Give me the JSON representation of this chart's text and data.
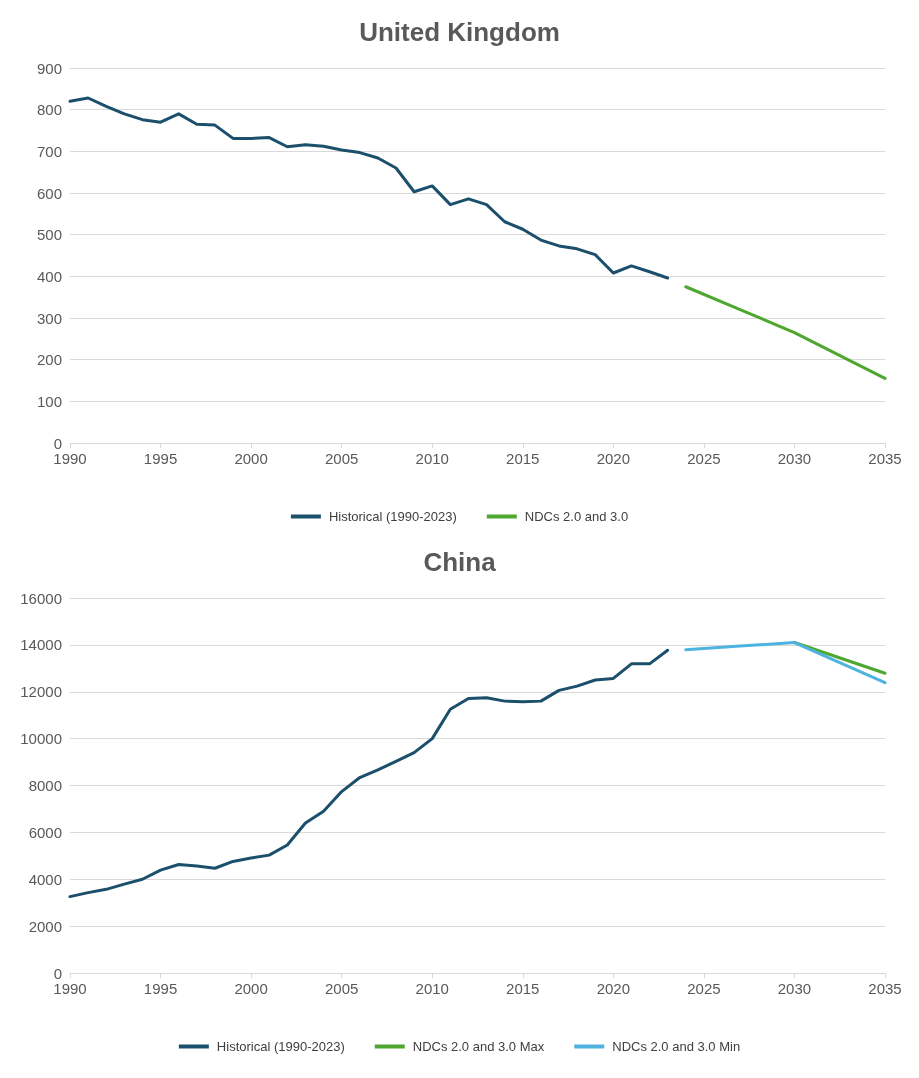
{
  "chart_data": [
    {
      "type": "line",
      "title": "United Kingdom",
      "xlim": [
        1990,
        2035
      ],
      "xticks": [
        1990,
        1995,
        2000,
        2005,
        2010,
        2015,
        2020,
        2025,
        2030,
        2035
      ],
      "ylim": [
        0,
        900
      ],
      "yticks": [
        0,
        100,
        200,
        300,
        400,
        500,
        600,
        700,
        800,
        900
      ],
      "grid": "y",
      "legend": "bottom",
      "marker": "none",
      "series": [
        {
          "name": "Historical (1990-2023)",
          "color": "#1b4f6b",
          "x": [
            1990,
            1991,
            1992,
            1993,
            1994,
            1995,
            1996,
            1997,
            1998,
            1999,
            2000,
            2001,
            2002,
            2003,
            2004,
            2005,
            2006,
            2007,
            2008,
            2009,
            2010,
            2011,
            2012,
            2013,
            2014,
            2015,
            2016,
            2017,
            2018,
            2019,
            2020,
            2021,
            2022,
            2023
          ],
          "values": [
            820,
            828,
            808,
            790,
            776,
            770,
            790,
            765,
            763,
            731,
            731,
            733,
            711,
            716,
            712,
            703,
            697,
            684,
            660,
            603,
            617,
            572,
            586,
            572,
            531,
            513,
            487,
            473,
            466,
            452,
            408,
            425,
            411,
            396
          ]
        },
        {
          "name": "NDCs 2.0 and 3.0",
          "color": "#4ea72e",
          "x": [
            2024,
            2027,
            2030,
            2035
          ],
          "values": [
            375,
            320,
            265,
            155
          ]
        }
      ]
    },
    {
      "type": "line",
      "title": "China",
      "xlim": [
        1990,
        2035
      ],
      "xticks": [
        1990,
        1995,
        2000,
        2005,
        2010,
        2015,
        2020,
        2025,
        2030,
        2035
      ],
      "ylim": [
        0,
        16000
      ],
      "yticks": [
        0,
        2000,
        4000,
        6000,
        8000,
        10000,
        12000,
        14000,
        16000
      ],
      "grid": "y",
      "legend": "bottom",
      "marker": "none",
      "series": [
        {
          "name": "Historical (1990-2023)",
          "color": "#1b4f6b",
          "x": [
            1990,
            1991,
            1992,
            1993,
            1994,
            1995,
            1996,
            1997,
            1998,
            1999,
            2000,
            2001,
            2002,
            2003,
            2004,
            2005,
            2006,
            2007,
            2008,
            2009,
            2010,
            2011,
            2012,
            2013,
            2014,
            2015,
            2016,
            2017,
            2018,
            2019,
            2020,
            2021,
            2022,
            2023
          ],
          "values": [
            3260,
            3430,
            3570,
            3790,
            4000,
            4390,
            4630,
            4570,
            4470,
            4760,
            4910,
            5030,
            5460,
            6400,
            6900,
            7740,
            8340,
            8670,
            9030,
            9400,
            10000,
            11250,
            11710,
            11740,
            11600,
            11570,
            11600,
            12060,
            12240,
            12500,
            12570,
            13190,
            13190,
            13770
          ]
        },
        {
          "name": "NDCs 2.0 and 3.0 Max",
          "color": "#4ea72e",
          "x": [
            2030,
            2035
          ],
          "values": [
            14100,
            12790
          ]
        },
        {
          "name": "NDCs 2.0 and 3.0 Min",
          "color": "#4eb3e0",
          "x": [
            2024,
            2027,
            2030,
            2035
          ],
          "values": [
            13790,
            13950,
            14100,
            12390
          ]
        }
      ]
    }
  ]
}
